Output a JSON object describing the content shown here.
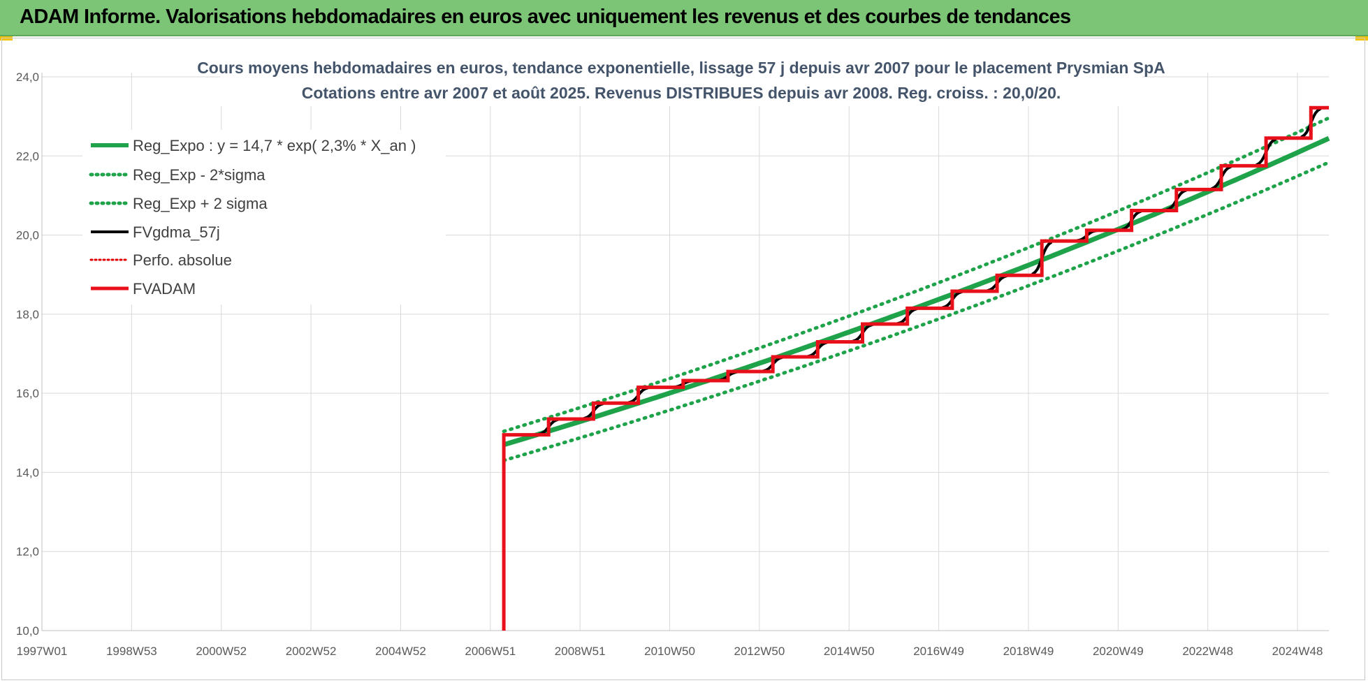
{
  "banner": {
    "title": "ADAM Informe. Valorisations hebdomadaires en euros avec uniquement les revenus et des courbes de tendances"
  },
  "chart_data": {
    "type": "line",
    "title_line1": "Cours moyens hebdomadaires en euros, tendance exponentielle, lissage 57 j depuis avr 2007 pour le placement Prysmian SpA",
    "title_line2": "Cotations entre avr 2007 et août 2025. Revenus DISTRIBUES depuis avr 2008. Reg. croiss. : 20,0/20.",
    "x_tick_labels": [
      "1997W01",
      "1998W53",
      "2000W52",
      "2002W52",
      "2004W52",
      "2006W51",
      "2008W51",
      "2010W50",
      "2012W50",
      "2014W50",
      "2016W49",
      "2018W49",
      "2020W49",
      "2022W48",
      "2024W48"
    ],
    "x_tick_years": [
      1997.0,
      1999.0,
      2001.0,
      2003.0,
      2005.0,
      2007.0,
      2009.0,
      2011.0,
      2013.0,
      2015.0,
      2017.0,
      2019.0,
      2021.0,
      2023.0,
      2025.0
    ],
    "xlim": [
      1997.0,
      2025.7
    ],
    "ylim": [
      10.0,
      24.0
    ],
    "y_ticks": [
      10.0,
      12.0,
      14.0,
      16.0,
      18.0,
      20.0,
      22.0,
      24.0
    ],
    "y_tick_labels": [
      "10,0",
      "12,0",
      "14,0",
      "16,0",
      "18,0",
      "20,0",
      "22,0",
      "24,0"
    ],
    "grid": true,
    "legend_position": "top-left",
    "regression": {
      "base": 14.7,
      "rate": 0.023,
      "start": 2007.3,
      "end": 2025.7,
      "band_factor_low": 0.973,
      "band_factor_high": 1.023
    },
    "fvadam_steps": [
      {
        "x": 2007.3,
        "y": 10.0
      },
      {
        "x": 2007.3,
        "y": 14.95
      },
      {
        "x": 2008.3,
        "y": 14.95
      },
      {
        "x": 2008.3,
        "y": 15.35
      },
      {
        "x": 2009.3,
        "y": 15.35
      },
      {
        "x": 2009.3,
        "y": 15.75
      },
      {
        "x": 2010.3,
        "y": 15.75
      },
      {
        "x": 2010.3,
        "y": 16.15
      },
      {
        "x": 2011.3,
        "y": 16.15
      },
      {
        "x": 2011.3,
        "y": 16.32
      },
      {
        "x": 2012.3,
        "y": 16.32
      },
      {
        "x": 2012.3,
        "y": 16.55
      },
      {
        "x": 2013.3,
        "y": 16.55
      },
      {
        "x": 2013.3,
        "y": 16.92
      },
      {
        "x": 2014.3,
        "y": 16.92
      },
      {
        "x": 2014.3,
        "y": 17.3
      },
      {
        "x": 2015.3,
        "y": 17.3
      },
      {
        "x": 2015.3,
        "y": 17.75
      },
      {
        "x": 2016.3,
        "y": 17.75
      },
      {
        "x": 2016.3,
        "y": 18.15
      },
      {
        "x": 2017.3,
        "y": 18.15
      },
      {
        "x": 2017.3,
        "y": 18.58
      },
      {
        "x": 2018.3,
        "y": 18.58
      },
      {
        "x": 2018.3,
        "y": 18.98
      },
      {
        "x": 2019.3,
        "y": 18.98
      },
      {
        "x": 2019.3,
        "y": 19.85
      },
      {
        "x": 2020.3,
        "y": 19.85
      },
      {
        "x": 2020.3,
        "y": 20.12
      },
      {
        "x": 2021.3,
        "y": 20.12
      },
      {
        "x": 2021.3,
        "y": 20.62
      },
      {
        "x": 2022.3,
        "y": 20.62
      },
      {
        "x": 2022.3,
        "y": 21.15
      },
      {
        "x": 2023.3,
        "y": 21.15
      },
      {
        "x": 2023.3,
        "y": 21.75
      },
      {
        "x": 2024.3,
        "y": 21.75
      },
      {
        "x": 2024.3,
        "y": 22.45
      },
      {
        "x": 2025.3,
        "y": 22.45
      },
      {
        "x": 2025.3,
        "y": 23.22
      },
      {
        "x": 2025.7,
        "y": 23.22
      }
    ],
    "series": [
      {
        "name": "Reg_Expo : y = 14,7 * exp( 2,3% *  X_an )",
        "color": "#1fa34a",
        "style": "solid"
      },
      {
        "name": "Reg_Exp - 2*sigma",
        "color": "#1fa34a",
        "style": "dotted"
      },
      {
        "name": "Reg_Exp + 2 sigma",
        "color": "#1fa34a",
        "style": "dotted"
      },
      {
        "name": "FVgdma_57j",
        "color": "#000000",
        "style": "solid"
      },
      {
        "name": "Perfo. absolue",
        "color": "#e00000",
        "style": "dotted"
      },
      {
        "name": "FVADAM",
        "color": "#e8101a",
        "style": "solid"
      }
    ]
  }
}
